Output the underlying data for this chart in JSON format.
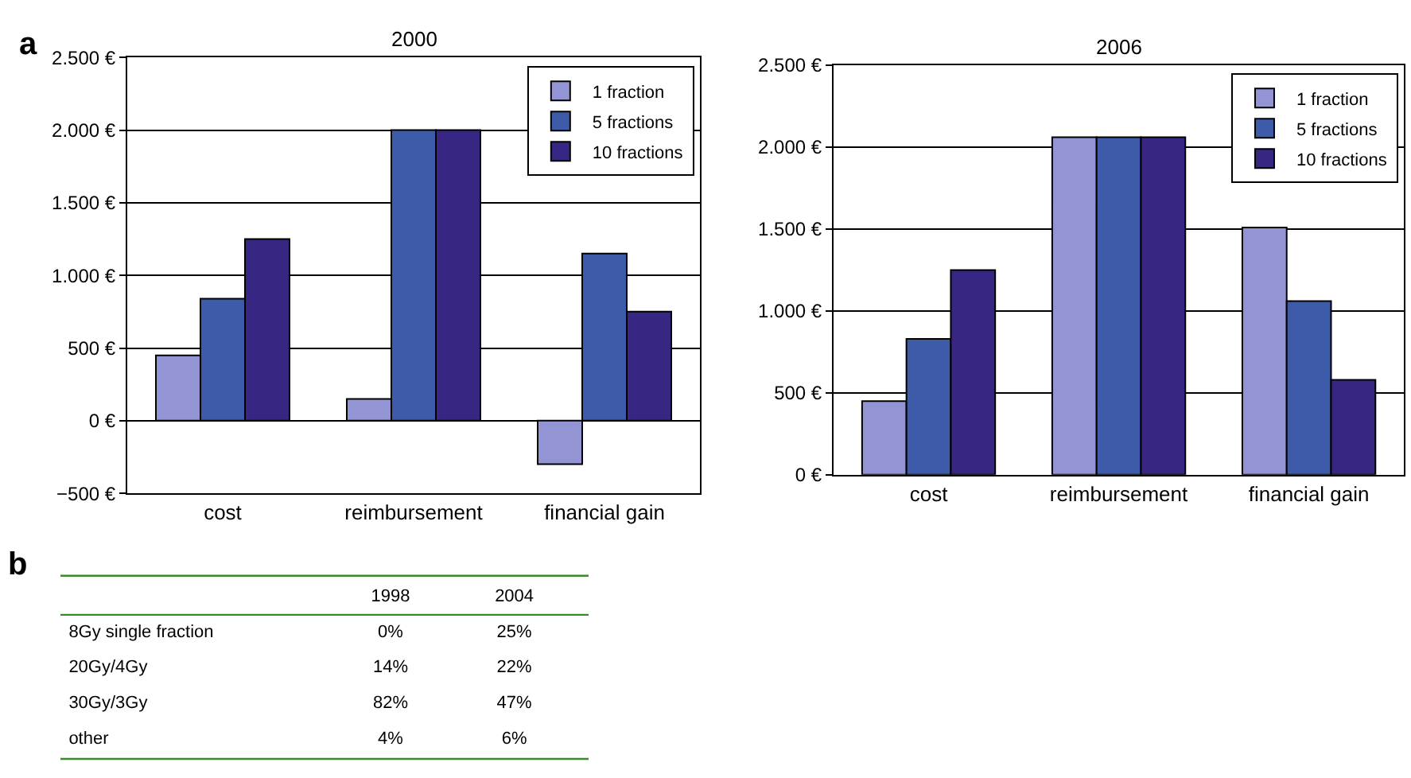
{
  "chart_data": [
    {
      "type": "bar",
      "title": "2000",
      "categories": [
        "cost",
        "reimbursement",
        "financial gain"
      ],
      "series": [
        {
          "name": "1 fraction",
          "color": "#9294d3",
          "values": [
            450,
            150,
            -300
          ]
        },
        {
          "name": "5 fractions",
          "color": "#3d5ba9",
          "values": [
            840,
            2000,
            1150
          ]
        },
        {
          "name": "10 fractions",
          "color": "#372782",
          "values": [
            1250,
            2000,
            750
          ]
        }
      ],
      "ylim": [
        -500,
        2500
      ],
      "yticks": [
        {
          "value": -500,
          "label": "−500 €"
        },
        {
          "value": 0,
          "label": "0 €"
        },
        {
          "value": 500,
          "label": "500 €"
        },
        {
          "value": 1000,
          "label": "1.000 €"
        },
        {
          "value": 1500,
          "label": "1.500 €"
        },
        {
          "value": 2000,
          "label": "2.000 €"
        },
        {
          "value": 2500,
          "label": "2.500 €"
        }
      ],
      "grid": "y",
      "legend": "top right",
      "annotations": [
        "a"
      ]
    },
    {
      "type": "bar",
      "title": "2006",
      "categories": [
        "cost",
        "reimbursement",
        "financial gain"
      ],
      "series": [
        {
          "name": "1 fraction",
          "color": "#9294d3",
          "values": [
            450,
            2060,
            1510
          ]
        },
        {
          "name": "5 fractions",
          "color": "#3d5ba9",
          "values": [
            830,
            2060,
            1060
          ]
        },
        {
          "name": "10 fractions",
          "color": "#372782",
          "values": [
            1250,
            2060,
            580
          ]
        }
      ],
      "ylim": [
        0,
        2500
      ],
      "yticks": [
        {
          "value": 0,
          "label": "0 €"
        },
        {
          "value": 500,
          "label": "500 €"
        },
        {
          "value": 1000,
          "label": "1.000 €"
        },
        {
          "value": 1500,
          "label": "1.500 €"
        },
        {
          "value": 2000,
          "label": "2.000 €"
        },
        {
          "value": 2500,
          "label": "2.500 €"
        }
      ],
      "grid": "y",
      "legend": "top right"
    },
    {
      "type": "other",
      "categories": [
        "1998",
        "2004"
      ],
      "y_categories": [
        "8Gy single fraction",
        "20Gy/4Gy",
        "30Gy/3Gy",
        "other"
      ],
      "cell_labels": [
        [
          "0%",
          "25%"
        ],
        [
          "14%",
          "22%"
        ],
        [
          "82%",
          "47%"
        ],
        [
          "4%",
          "6%"
        ]
      ],
      "annotations": [
        "b"
      ]
    }
  ]
}
